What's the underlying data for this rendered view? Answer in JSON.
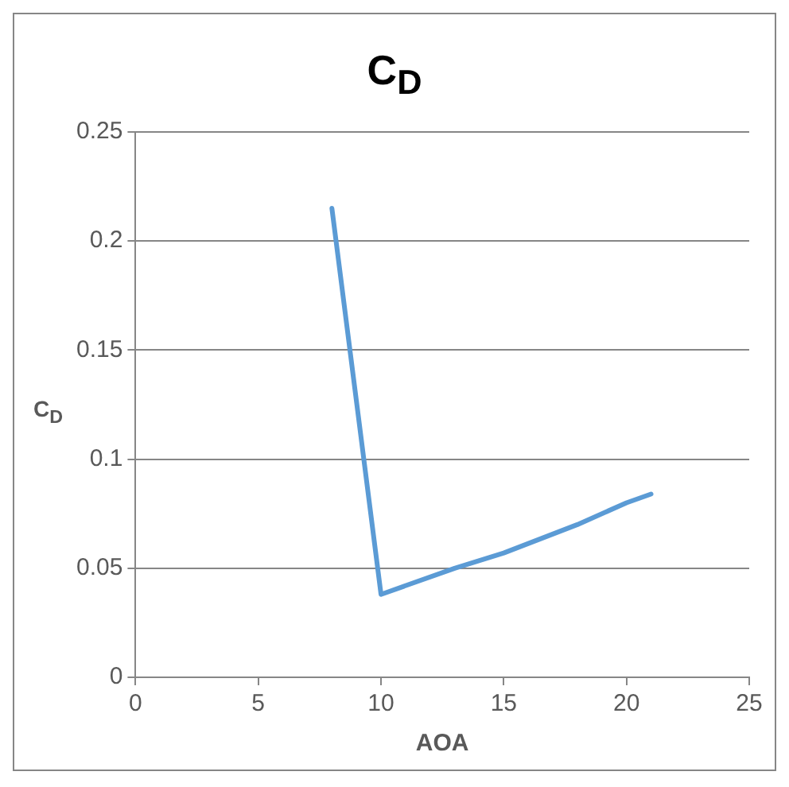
{
  "chart_data": {
    "type": "line",
    "title": "C$_{D}$",
    "xlabel": "AOA",
    "ylabel": "C$_{D}$",
    "x": [
      8,
      10,
      13,
      15,
      18,
      20,
      21
    ],
    "series": [
      {
        "color": "#5b9bd5",
        "values": [
          0.215,
          0.038,
          0.05,
          0.057,
          0.07,
          0.08,
          0.084
        ]
      }
    ],
    "xlim": [
      0,
      25
    ],
    "xticks": [
      0,
      5,
      10,
      15,
      20,
      25
    ],
    "ylim": [
      0,
      0.25
    ],
    "yticks": [
      0,
      0.05,
      0.1,
      0.15,
      0.2,
      0.25
    ],
    "grid": "y",
    "legend": false,
    "marker": "none",
    "line_style": "solid"
  }
}
